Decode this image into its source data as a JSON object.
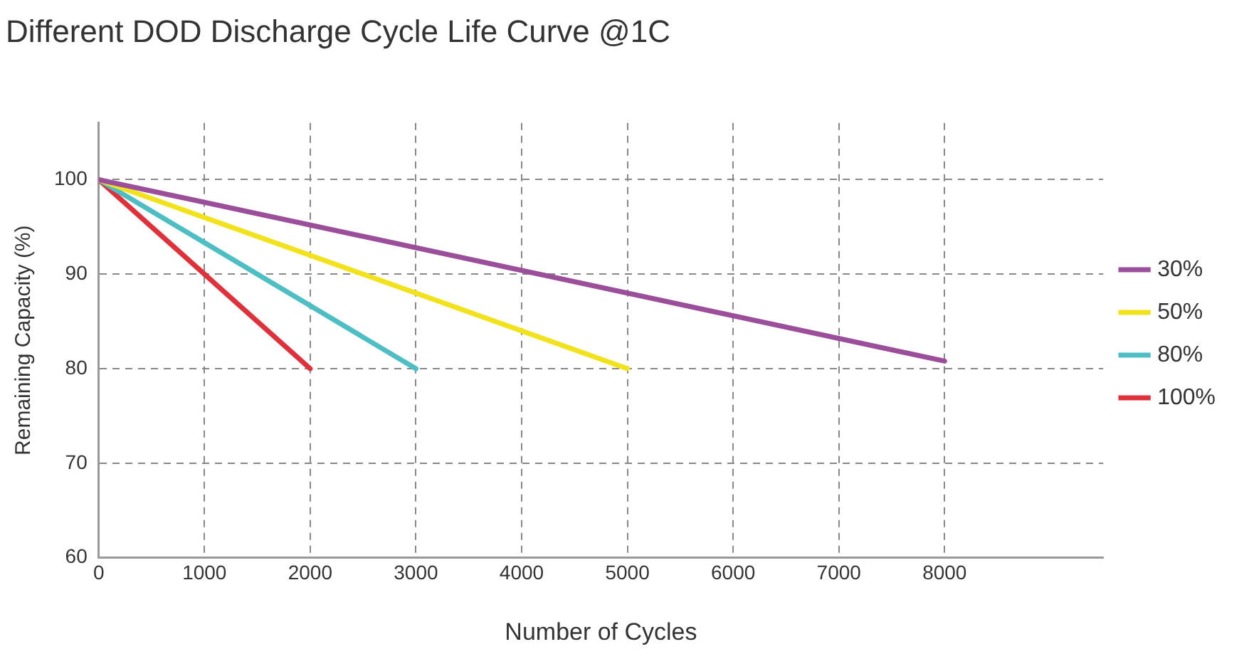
{
  "chart_data": {
    "type": "line",
    "title": "Different DOD Discharge Cycle Life Curve @1C",
    "xlabel": "Number of Cycles",
    "ylabel": "Remaining Capacity (%)",
    "xlim": [
      0,
      9500
    ],
    "ylim": [
      60,
      106
    ],
    "xticks": [
      0,
      1000,
      2000,
      3000,
      4000,
      5000,
      6000,
      7000,
      8000
    ],
    "yticks": [
      60,
      70,
      80,
      90,
      100
    ],
    "grid": true,
    "line_style": "solid",
    "legend": "right",
    "marker": "none",
    "series": [
      {
        "name": "30%",
        "color": "#9b4f9b",
        "x": [
          0,
          8000
        ],
        "values": [
          100,
          80.8
        ]
      },
      {
        "name": "50%",
        "color": "#f2e21c",
        "x": [
          0,
          5000
        ],
        "values": [
          100,
          80
        ]
      },
      {
        "name": "80%",
        "color": "#4dbfc4",
        "x": [
          0,
          3000
        ],
        "values": [
          100,
          80
        ]
      },
      {
        "name": "100%",
        "color": "#e0303a",
        "x": [
          0,
          2000
        ],
        "values": [
          100,
          80
        ]
      }
    ]
  }
}
